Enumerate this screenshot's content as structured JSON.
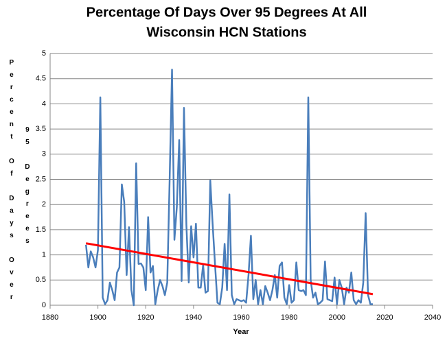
{
  "chart_data": {
    "type": "line",
    "title": [
      "Percentage Of Days Over 95 Degrees At All",
      "Wisconsin HCN Stations"
    ],
    "xlabel": "Year",
    "ylabel": [
      "Percent Of Days Over",
      "95 Degrees"
    ],
    "x": [
      1895,
      1896,
      1897,
      1898,
      1899,
      1900,
      1901,
      1902,
      1903,
      1904,
      1905,
      1906,
      1907,
      1908,
      1909,
      1910,
      1911,
      1912,
      1913,
      1914,
      1915,
      1916,
      1917,
      1918,
      1919,
      1920,
      1921,
      1922,
      1923,
      1924,
      1925,
      1926,
      1927,
      1928,
      1929,
      1930,
      1931,
      1932,
      1933,
      1934,
      1935,
      1936,
      1937,
      1938,
      1939,
      1940,
      1941,
      1942,
      1943,
      1944,
      1945,
      1946,
      1947,
      1948,
      1949,
      1950,
      1951,
      1952,
      1953,
      1954,
      1955,
      1956,
      1957,
      1958,
      1959,
      1960,
      1961,
      1962,
      1963,
      1964,
      1965,
      1966,
      1967,
      1968,
      1969,
      1970,
      1971,
      1972,
      1973,
      1974,
      1975,
      1976,
      1977,
      1978,
      1979,
      1980,
      1981,
      1982,
      1983,
      1984,
      1985,
      1986,
      1987,
      1988,
      1989,
      1990,
      1991,
      1992,
      1993,
      1994,
      1995,
      1996,
      1997,
      1998,
      1999,
      2000,
      2001,
      2002,
      2003,
      2004,
      2005,
      2006,
      2007,
      2008,
      2009,
      2010,
      2011,
      2012,
      2013,
      2014,
      2015
    ],
    "series": [
      {
        "color": "#4a7ebb",
        "values": [
          1.2,
          0.75,
          1.07,
          0.95,
          0.75,
          1.1,
          4.13,
          0.15,
          0.02,
          0.1,
          0.45,
          0.3,
          0.1,
          0.65,
          0.75,
          2.4,
          2.05,
          0.6,
          1.55,
          0.3,
          0.0,
          2.82,
          0.82,
          0.83,
          0.75,
          0.3,
          1.75,
          0.65,
          0.78,
          0.02,
          0.3,
          0.5,
          0.38,
          0.2,
          0.45,
          2.5,
          4.68,
          1.3,
          1.95,
          3.28,
          0.48,
          3.92,
          1.6,
          0.45,
          1.57,
          0.95,
          1.62,
          0.35,
          0.35,
          0.8,
          0.25,
          0.28,
          2.48,
          1.6,
          0.8,
          0.05,
          0.02,
          0.35,
          1.22,
          0.3,
          2.2,
          0.2,
          0.02,
          0.12,
          0.1,
          0.08,
          0.1,
          0.05,
          0.6,
          1.38,
          0.12,
          0.5,
          0.02,
          0.3,
          0.02,
          0.38,
          0.25,
          0.1,
          0.3,
          0.6,
          0.15,
          0.78,
          0.85,
          0.15,
          0.02,
          0.4,
          0.05,
          0.1,
          0.85,
          0.3,
          0.28,
          0.3,
          0.2,
          4.13,
          0.5,
          0.15,
          0.25,
          0.02,
          0.05,
          0.1,
          0.87,
          0.12,
          0.1,
          0.08,
          0.55,
          0.02,
          0.5,
          0.35,
          0.02,
          0.35,
          0.25,
          0.65,
          0.1,
          0.02,
          0.1,
          0.05,
          0.45,
          1.83,
          0.2,
          0.02,
          0.02
        ]
      },
      {
        "color": "#ff0000",
        "x": [
          1895,
          2015
        ],
        "values": [
          1.23,
          0.22
        ]
      }
    ],
    "xlim": [
      1880,
      2040
    ],
    "xticks": [
      1880,
      1900,
      1920,
      1940,
      1960,
      1980,
      2000,
      2020,
      2040
    ],
    "ylim": [
      0,
      5
    ],
    "yticks": [
      0,
      {
        "value": 0.5,
        "label": "0.5"
      },
      1,
      {
        "value": 1.5,
        "label": "1.5"
      },
      2,
      {
        "value": 2.5,
        "label": "2.5"
      },
      3,
      {
        "value": 3.5,
        "label": "3.5"
      },
      4,
      {
        "value": 4.5,
        "label": "4.5"
      },
      5
    ],
    "grid": true
  }
}
